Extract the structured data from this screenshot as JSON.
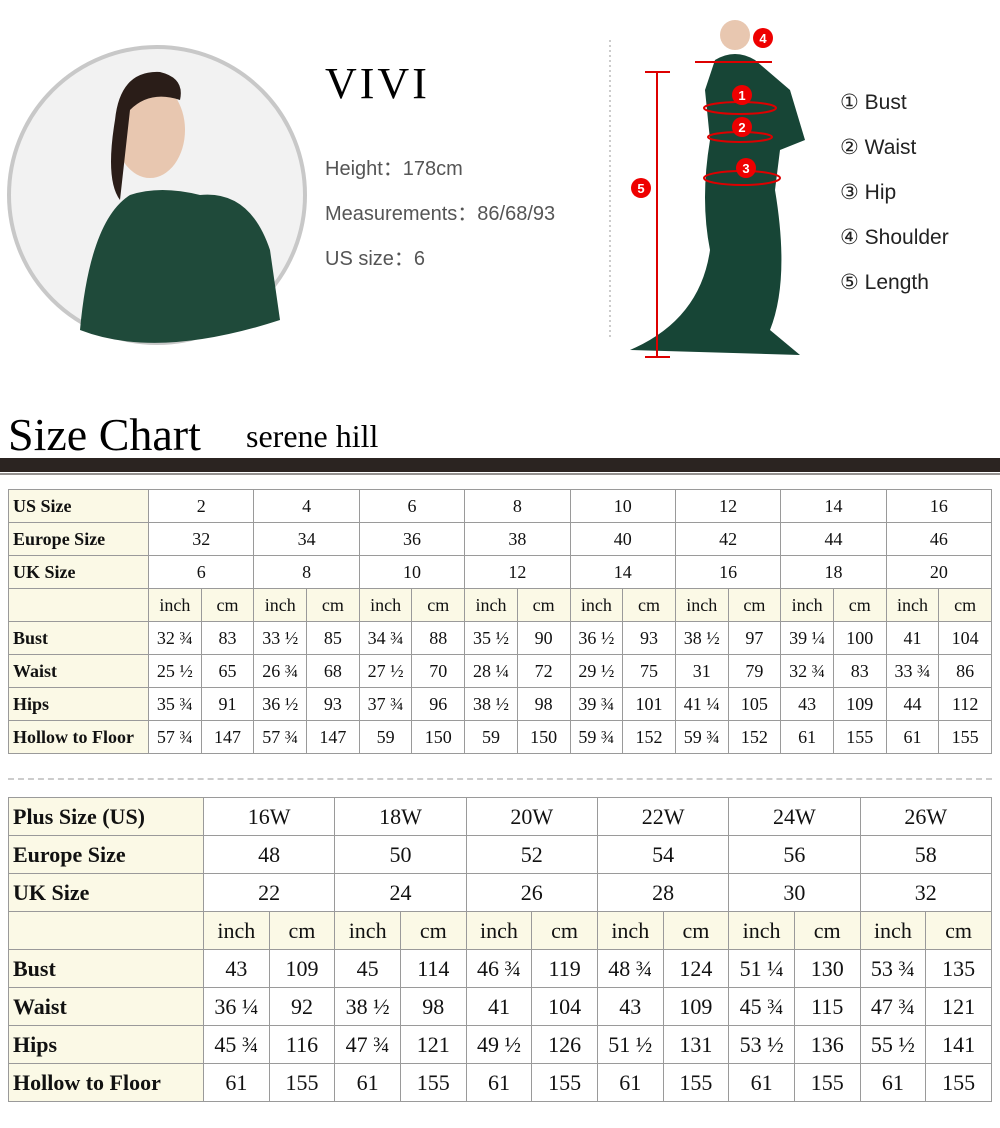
{
  "model": {
    "name": "VIVI",
    "lines": [
      "Height：178cm",
      "Measurements：86/68/93",
      "US size：6"
    ]
  },
  "diagram": {
    "markers": [
      "4",
      "1",
      "2",
      "3",
      "5"
    ]
  },
  "legend": [
    {
      "marker": "①",
      "label": "Bust"
    },
    {
      "marker": "②",
      "label": "Waist"
    },
    {
      "marker": "③",
      "label": "Hip"
    },
    {
      "marker": "④",
      "label": "Shoulder"
    },
    {
      "marker": "⑤",
      "label": "Length"
    }
  ],
  "size_chart": {
    "title": "Size Chart",
    "brand": "serene hill"
  },
  "standard_table": {
    "size_rows": [
      {
        "label": "US Size",
        "values": [
          "2",
          "4",
          "6",
          "8",
          "10",
          "12",
          "14",
          "16"
        ]
      },
      {
        "label": "Europe Size",
        "values": [
          "32",
          "34",
          "36",
          "38",
          "40",
          "42",
          "44",
          "46"
        ]
      },
      {
        "label": "UK Size",
        "values": [
          "6",
          "8",
          "10",
          "12",
          "14",
          "16",
          "18",
          "20"
        ]
      }
    ],
    "units": [
      "inch",
      "cm",
      "inch",
      "cm",
      "inch",
      "cm",
      "inch",
      "cm",
      "inch",
      "cm",
      "inch",
      "cm",
      "inch",
      "cm",
      "inch",
      "cm"
    ],
    "measure_rows": [
      {
        "label": "Bust",
        "values": [
          "32 ¾",
          "83",
          "33 ½",
          "85",
          "34 ¾",
          "88",
          "35 ½",
          "90",
          "36 ½",
          "93",
          "38 ½",
          "97",
          "39 ¼",
          "100",
          "41",
          "104"
        ]
      },
      {
        "label": "Waist",
        "values": [
          "25 ½",
          "65",
          "26 ¾",
          "68",
          "27 ½",
          "70",
          "28 ¼",
          "72",
          "29 ½",
          "75",
          "31",
          "79",
          "32 ¾",
          "83",
          "33 ¾",
          "86"
        ]
      },
      {
        "label": "Hips",
        "values": [
          "35 ¾",
          "91",
          "36 ½",
          "93",
          "37 ¾",
          "96",
          "38 ½",
          "98",
          "39 ¾",
          "101",
          "41 ¼",
          "105",
          "43",
          "109",
          "44",
          "112"
        ]
      },
      {
        "label": "Hollow to Floor",
        "values": [
          "57 ¾",
          "147",
          "57 ¾",
          "147",
          "59",
          "150",
          "59",
          "150",
          "59 ¾",
          "152",
          "59 ¾",
          "152",
          "61",
          "155",
          "61",
          "155"
        ]
      }
    ]
  },
  "plus_table": {
    "size_rows": [
      {
        "label": "Plus Size (US)",
        "values": [
          "16W",
          "18W",
          "20W",
          "22W",
          "24W",
          "26W"
        ]
      },
      {
        "label": "Europe Size",
        "values": [
          "48",
          "50",
          "52",
          "54",
          "56",
          "58"
        ]
      },
      {
        "label": "UK Size",
        "values": [
          "22",
          "24",
          "26",
          "28",
          "30",
          "32"
        ]
      }
    ],
    "units": [
      "inch",
      "cm",
      "inch",
      "cm",
      "inch",
      "cm",
      "inch",
      "cm",
      "inch",
      "cm",
      "inch",
      "cm"
    ],
    "measure_rows": [
      {
        "label": "Bust",
        "values": [
          "43",
          "109",
          "45",
          "114",
          "46 ¾",
          "119",
          "48 ¾",
          "124",
          "51 ¼",
          "130",
          "53 ¾",
          "135"
        ]
      },
      {
        "label": "Waist",
        "values": [
          "36 ¼",
          "92",
          "38 ½",
          "98",
          "41",
          "104",
          "43",
          "109",
          "45 ¾",
          "115",
          "47 ¾",
          "121"
        ]
      },
      {
        "label": "Hips",
        "values": [
          "45 ¾",
          "116",
          "47 ¾",
          "121",
          "49 ½",
          "126",
          "51 ½",
          "131",
          "53 ½",
          "136",
          "55 ½",
          "141"
        ]
      },
      {
        "label": "Hollow to Floor",
        "values": [
          "61",
          "155",
          "61",
          "155",
          "61",
          "155",
          "61",
          "155",
          "61",
          "155",
          "61",
          "155"
        ]
      }
    ]
  }
}
